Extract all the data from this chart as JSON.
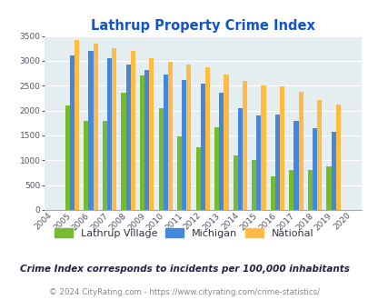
{
  "title": "Lathrup Property Crime Index",
  "years": [
    "2004",
    "2005",
    "2006",
    "2007",
    "2008",
    "2009",
    "2010",
    "2011",
    "2012",
    "2013",
    "2014",
    "2015",
    "2016",
    "2017",
    "2018",
    "2019",
    "2020"
  ],
  "lathrup": [
    0,
    2100,
    1800,
    1800,
    2350,
    2700,
    2050,
    1480,
    1270,
    1670,
    1100,
    1010,
    670,
    800,
    800,
    870,
    0
  ],
  "michigan": [
    0,
    3100,
    3200,
    3050,
    2930,
    2820,
    2720,
    2620,
    2540,
    2350,
    2050,
    1900,
    1920,
    1790,
    1640,
    1570,
    0
  ],
  "national": [
    0,
    3420,
    3340,
    3260,
    3200,
    3050,
    2980,
    2920,
    2870,
    2730,
    2600,
    2510,
    2480,
    2380,
    2210,
    2130,
    0
  ],
  "bar_width": 0.25,
  "ylim": [
    0,
    3500
  ],
  "yticks": [
    0,
    500,
    1000,
    1500,
    2000,
    2500,
    3000,
    3500
  ],
  "color_lathrup": "#77bb33",
  "color_michigan": "#4488dd",
  "color_national": "#ffbb44",
  "bg_color": "#e4eef0",
  "title_color": "#1155cc",
  "legend_labels": [
    "Lathrup Village",
    "Michigan",
    "National"
  ],
  "subtitle": "Crime Index corresponds to incidents per 100,000 inhabitants",
  "footer": "© 2024 CityRating.com - https://www.cityrating.com/crime-statistics/",
  "subtitle_color": "#222244",
  "footer_color": "#888888"
}
